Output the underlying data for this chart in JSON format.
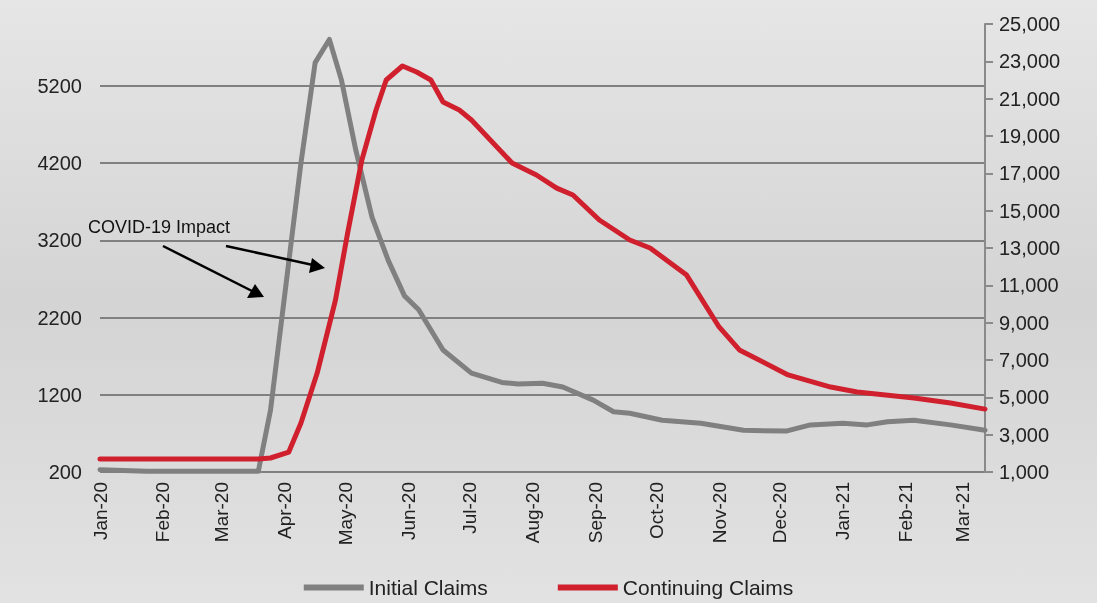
{
  "chart_data": {
    "type": "line",
    "annotations": [
      "COVID-19 Impact"
    ],
    "xlim": [
      "2020-01-01",
      "2021-03-12"
    ],
    "xticks": [
      {
        "value": "2020-01-01",
        "label": "Jan-20"
      },
      {
        "value": "2020-02-01",
        "label": "Feb-20"
      },
      {
        "value": "2020-03-01",
        "label": "Mar-20"
      },
      {
        "value": "2020-04-01",
        "label": "Apr-20"
      },
      {
        "value": "2020-05-01",
        "label": "May-20"
      },
      {
        "value": "2020-06-01",
        "label": "Jun-20"
      },
      {
        "value": "2020-07-01",
        "label": "Jul-20"
      },
      {
        "value": "2020-08-01",
        "label": "Aug-20"
      },
      {
        "value": "2020-09-01",
        "label": "Sep-20"
      },
      {
        "value": "2020-10-01",
        "label": "Oct-20"
      },
      {
        "value": "2020-11-01",
        "label": "Nov-20"
      },
      {
        "value": "2020-12-01",
        "label": "Dec-20"
      },
      {
        "value": "2021-01-01",
        "label": "Jan-21"
      },
      {
        "value": "2021-02-01",
        "label": "Feb-21"
      },
      {
        "value": "2021-03-01",
        "label": "Mar-21"
      }
    ],
    "ylim": [
      200,
      6000
    ],
    "yticks": [
      200,
      1200,
      2200,
      3200,
      4200,
      5200
    ],
    "y2lim": [
      1000,
      25000
    ],
    "y2ticks": [
      {
        "value": 1000,
        "label": "1,000"
      },
      {
        "value": 3000,
        "label": "3,000"
      },
      {
        "value": 5000,
        "label": "5,000"
      },
      {
        "value": 7000,
        "label": "7,000"
      },
      {
        "value": 9000,
        "label": "9,000"
      },
      {
        "value": 11000,
        "label": "11,000"
      },
      {
        "value": 13000,
        "label": "13,000"
      },
      {
        "value": 15000,
        "label": "15,000"
      },
      {
        "value": 17000,
        "label": "17,000"
      },
      {
        "value": 19000,
        "label": "19,000"
      },
      {
        "value": 21000,
        "label": "21,000"
      },
      {
        "value": 23000,
        "label": "23,000"
      },
      {
        "value": 25000,
        "label": "25,000"
      }
    ],
    "grid": "y",
    "legend": "bottom",
    "marker": "none",
    "line_style": "solid",
    "series": [
      {
        "name": "Initial Claims",
        "color": "#808080",
        "x": [
          "2020-01-01",
          "2020-01-24",
          "2020-02-18",
          "2020-03-19",
          "2020-03-25",
          "2020-04-09",
          "2020-04-16",
          "2020-04-23",
          "2020-04-29",
          "2020-05-06",
          "2020-05-14",
          "2020-05-22",
          "2020-05-30",
          "2020-06-06",
          "2020-06-18",
          "2020-07-02",
          "2020-07-17",
          "2020-07-25",
          "2020-08-06",
          "2020-08-16",
          "2020-08-31",
          "2020-09-10",
          "2020-09-18",
          "2020-10-04",
          "2020-10-23",
          "2020-11-13",
          "2020-12-04",
          "2020-12-16",
          "2021-01-01",
          "2021-01-13",
          "2021-01-23",
          "2021-02-05",
          "2021-02-23",
          "2021-03-12"
        ],
        "values": [
          230,
          210,
          210,
          210,
          1000,
          4200,
          5500,
          5800,
          5270,
          4370,
          3500,
          2940,
          2480,
          2300,
          1780,
          1480,
          1360,
          1340,
          1350,
          1300,
          1130,
          980,
          960,
          870,
          830,
          740,
          730,
          810,
          830,
          810,
          850,
          870,
          810,
          740
        ]
      },
      {
        "name": "Continuing Claims",
        "color": "#d0202e",
        "axis": "y2",
        "x": [
          "2020-01-01",
          "2020-03-19",
          "2020-03-25",
          "2020-04-03",
          "2020-04-09",
          "2020-04-17",
          "2020-04-26",
          "2020-05-02",
          "2020-05-09",
          "2020-05-16",
          "2020-05-21",
          "2020-05-29",
          "2020-06-05",
          "2020-06-12",
          "2020-06-18",
          "2020-06-26",
          "2020-07-02",
          "2020-07-22",
          "2020-08-03",
          "2020-08-13",
          "2020-08-21",
          "2020-09-03",
          "2020-09-18",
          "2020-09-28",
          "2020-10-04",
          "2020-10-16",
          "2020-11-01",
          "2020-11-11",
          "2020-12-05",
          "2020-12-26",
          "2021-01-08",
          "2021-02-05",
          "2021-02-23",
          "2021-03-12"
        ],
        "values": [
          1700,
          1700,
          1750,
          2070,
          3620,
          6300,
          10210,
          13800,
          17710,
          20390,
          22000,
          22750,
          22430,
          22000,
          20820,
          20390,
          19860,
          17550,
          16910,
          16210,
          15840,
          14500,
          13430,
          13000,
          12520,
          11550,
          8770,
          7540,
          6200,
          5550,
          5290,
          4960,
          4700,
          4370
        ]
      }
    ]
  }
}
